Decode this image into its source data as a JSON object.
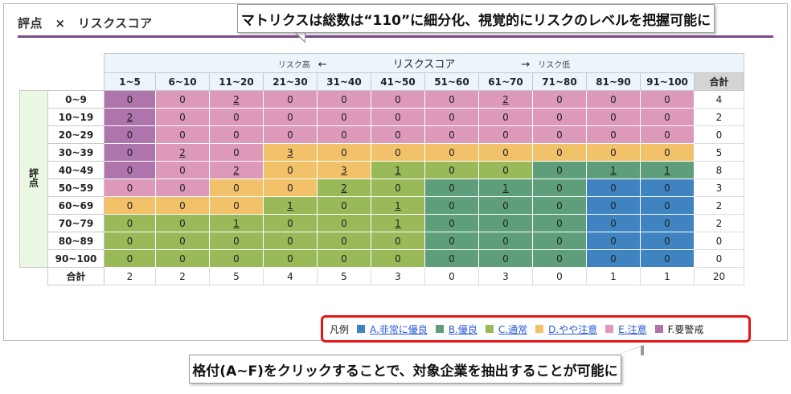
{
  "title": "評点　×　リスクスコア",
  "callout_top": "マトリクスは総数は“110”に細分化、視覚的にリスクのレベルを把握可能に",
  "callout_bottom": "格付(A~F)をクリックすることで、対象企業を抽出することが可能に",
  "header": {
    "risk_high": "リスク高",
    "arrow_left": "←",
    "risk_score": "リスクスコア",
    "arrow_right": "→",
    "risk_low": "リスク低",
    "total": "合計"
  },
  "row_axis": "評点",
  "columns": [
    "1~5",
    "6~10",
    "11~20",
    "21~30",
    "31~40",
    "41~50",
    "51~60",
    "61~70",
    "71~80",
    "81~90",
    "91~100"
  ],
  "rows": [
    {
      "label": "0~9",
      "values": [
        0,
        0,
        2,
        0,
        0,
        0,
        0,
        2,
        0,
        0,
        0
      ],
      "colors": [
        "F",
        "E",
        "E",
        "E",
        "E",
        "E",
        "E",
        "E",
        "E",
        "E",
        "E"
      ],
      "total": 4
    },
    {
      "label": "10~19",
      "values": [
        2,
        0,
        0,
        0,
        0,
        0,
        0,
        0,
        0,
        0,
        0
      ],
      "colors": [
        "F",
        "E",
        "E",
        "E",
        "E",
        "E",
        "E",
        "E",
        "E",
        "E",
        "E"
      ],
      "total": 2
    },
    {
      "label": "20~29",
      "values": [
        0,
        0,
        0,
        0,
        0,
        0,
        0,
        0,
        0,
        0,
        0
      ],
      "colors": [
        "F",
        "E",
        "E",
        "E",
        "E",
        "E",
        "E",
        "E",
        "E",
        "E",
        "E"
      ],
      "total": 0
    },
    {
      "label": "30~39",
      "values": [
        0,
        2,
        0,
        3,
        0,
        0,
        0,
        0,
        0,
        0,
        0
      ],
      "colors": [
        "F",
        "E",
        "E",
        "D",
        "D",
        "D",
        "D",
        "D",
        "D",
        "D",
        "D"
      ],
      "total": 5
    },
    {
      "label": "40~49",
      "values": [
        0,
        0,
        2,
        0,
        3,
        1,
        0,
        0,
        0,
        1,
        1
      ],
      "colors": [
        "F",
        "E",
        "E",
        "D",
        "D",
        "C",
        "C",
        "C",
        "B",
        "B",
        "B"
      ],
      "total": 8
    },
    {
      "label": "50~59",
      "values": [
        0,
        0,
        0,
        0,
        2,
        0,
        0,
        1,
        0,
        0,
        0
      ],
      "colors": [
        "E",
        "E",
        "D",
        "D",
        "C",
        "C",
        "B",
        "B",
        "B",
        "A",
        "A"
      ],
      "total": 3
    },
    {
      "label": "60~69",
      "values": [
        0,
        0,
        0,
        1,
        0,
        1,
        0,
        0,
        0,
        0,
        0
      ],
      "colors": [
        "D",
        "D",
        "D",
        "C",
        "C",
        "C",
        "B",
        "B",
        "B",
        "A",
        "A"
      ],
      "total": 2
    },
    {
      "label": "70~79",
      "values": [
        0,
        0,
        1,
        0,
        0,
        1,
        0,
        0,
        0,
        0,
        0
      ],
      "colors": [
        "C",
        "C",
        "C",
        "C",
        "C",
        "C",
        "B",
        "B",
        "B",
        "A",
        "A"
      ],
      "total": 2
    },
    {
      "label": "80~89",
      "values": [
        0,
        0,
        0,
        0,
        0,
        0,
        0,
        0,
        0,
        0,
        0
      ],
      "colors": [
        "C",
        "C",
        "C",
        "C",
        "C",
        "C",
        "B",
        "B",
        "B",
        "A",
        "A"
      ],
      "total": 0
    },
    {
      "label": "90~100",
      "values": [
        0,
        0,
        0,
        0,
        0,
        0,
        0,
        0,
        0,
        0,
        0
      ],
      "colors": [
        "C",
        "C",
        "C",
        "C",
        "C",
        "C",
        "B",
        "B",
        "B",
        "A",
        "A"
      ],
      "total": 0
    }
  ],
  "totals_label": "合計",
  "column_totals": [
    2,
    2,
    5,
    4,
    5,
    3,
    0,
    3,
    0,
    1,
    1
  ],
  "grand_total": 20,
  "legend": {
    "label": "凡例",
    "items": [
      {
        "code": "A",
        "text": "A.非常に優良",
        "color": "#3f83c1",
        "link": true
      },
      {
        "code": "B",
        "text": "B.優良",
        "color": "#5e9e7b",
        "link": true
      },
      {
        "code": "C",
        "text": "C.通常",
        "color": "#9ab958",
        "link": true
      },
      {
        "code": "D",
        "text": "D.やや注意",
        "color": "#f2c26a",
        "link": true
      },
      {
        "code": "E",
        "text": "E.注意",
        "color": "#dc99b9",
        "link": true
      },
      {
        "code": "F",
        "text": "F.要警戒",
        "color": "#ae74ac",
        "link": false
      }
    ]
  }
}
